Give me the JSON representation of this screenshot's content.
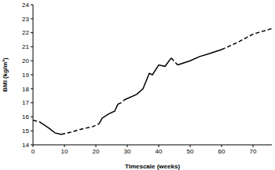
{
  "chart_data": {
    "type": "line",
    "x_label": "Timescale (weeks)",
    "y_label": "BMI (kg/m²)",
    "x": [
      0,
      2,
      5,
      7,
      9,
      12,
      15,
      19,
      21,
      22,
      24,
      26,
      27,
      28,
      29,
      33,
      35,
      37,
      38,
      40,
      42,
      44,
      45,
      46,
      50,
      53,
      56,
      60,
      65,
      70,
      76
    ],
    "series": [
      {
        "color": "#000000",
        "line_style": "solid",
        "values": [
          null,
          15.65,
          15.2,
          14.85,
          14.75,
          null,
          null,
          null,
          15.5,
          15.9,
          16.2,
          16.4,
          16.9,
          null,
          17.2,
          17.6,
          18.0,
          19.1,
          19.0,
          19.7,
          19.6,
          20.2,
          null,
          19.7,
          20.0,
          20.3,
          20.5,
          20.8,
          null,
          null,
          null
        ]
      },
      {
        "color": "#000000",
        "line_style": "dashed",
        "values": [
          15.75,
          15.65,
          null,
          null,
          14.75,
          14.9,
          15.1,
          15.3,
          15.5,
          null,
          null,
          null,
          16.9,
          17.0,
          17.2,
          null,
          null,
          null,
          null,
          null,
          null,
          20.2,
          19.95,
          19.7,
          null,
          null,
          null,
          20.8,
          21.3,
          21.9,
          22.3
        ]
      }
    ],
    "xlim": [
      0,
      76
    ],
    "xticks": [
      0,
      10,
      20,
      30,
      40,
      50,
      60,
      70
    ],
    "ylim": [
      14,
      24
    ],
    "yticks": [
      14,
      15,
      16,
      17,
      18,
      19,
      20,
      21,
      22,
      23,
      24
    ],
    "grid": false
  }
}
